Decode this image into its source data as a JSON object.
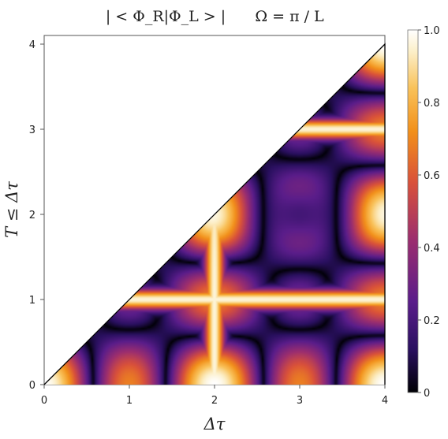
{
  "chart_data": {
    "type": "heatmap",
    "title_left": "| < Φ_R|Φ_L > |",
    "title_right": "Ω = π / L",
    "xlabel": "Δτ",
    "ylabel": "T ≤ Δτ",
    "xlim": [
      0,
      4
    ],
    "ylim": [
      0,
      4
    ],
    "x_ticks": [
      0,
      1,
      2,
      3,
      4
    ],
    "y_ticks": [
      0,
      1,
      2,
      3,
      4
    ],
    "region": "T ≤ Δτ (lower-right triangle)",
    "colorbar": {
      "min": 0,
      "max": 1,
      "ticks": [
        "0",
        "0.2",
        "0.4",
        "0.6",
        "0.8",
        "1.0"
      ],
      "colors": [
        "#000004",
        "#2a1060",
        "#5a1d8a",
        "#9b2e6f",
        "#d9513a",
        "#f2901a",
        "#f9c25a",
        "#fcefc8",
        "#ffffff"
      ]
    },
    "features": {
      "bright_lines": {
        "T": [
          1,
          3
        ],
        "dtau": [
          2
        ]
      },
      "dark_minimum_center": [
        3,
        2
      ]
    }
  }
}
